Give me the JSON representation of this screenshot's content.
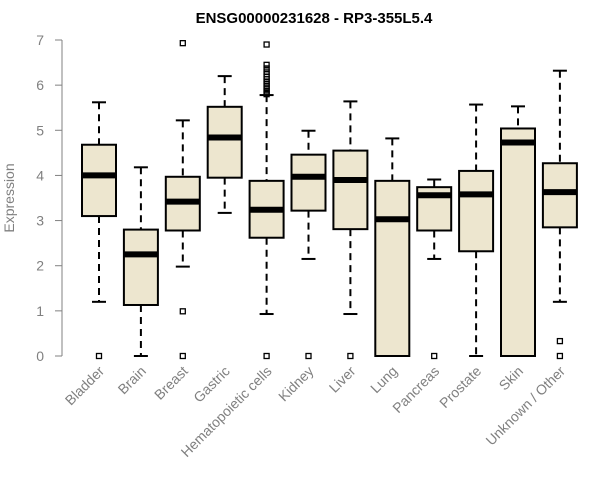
{
  "chart_data": {
    "type": "boxplot",
    "title": "ENSG00000231628 - RP3-355L5.4",
    "xlabel": "",
    "ylabel": "Expression",
    "ylim": [
      0,
      7
    ],
    "yticks": [
      0,
      1,
      2,
      3,
      4,
      5,
      6,
      7
    ],
    "categories": [
      "Bladder",
      "Brain",
      "Breast",
      "Gastric",
      "Hematopoietic cells",
      "Kidney",
      "Liver",
      "Lung",
      "Pancreas",
      "Prostate",
      "Skin",
      "Unknown / Other"
    ],
    "boxes": [
      {
        "name": "Bladder",
        "whisker_low": 1.2,
        "q1": 3.1,
        "median": 4.0,
        "q3": 4.68,
        "whisker_high": 5.62,
        "outliers": [
          0.0
        ]
      },
      {
        "name": "Brain",
        "whisker_low": 0.0,
        "q1": 1.13,
        "median": 2.25,
        "q3": 2.8,
        "whisker_high": 4.18,
        "outliers": []
      },
      {
        "name": "Breast",
        "whisker_low": 1.98,
        "q1": 2.78,
        "median": 3.42,
        "q3": 3.97,
        "whisker_high": 5.22,
        "outliers": [
          0.0,
          0.99,
          6.93
        ]
      },
      {
        "name": "Gastric",
        "whisker_low": 3.17,
        "q1": 3.95,
        "median": 4.84,
        "q3": 5.52,
        "whisker_high": 6.2,
        "outliers": []
      },
      {
        "name": "Hematopoietic cells",
        "whisker_low": 0.93,
        "q1": 2.62,
        "median": 3.24,
        "q3": 3.88,
        "whisker_high": 5.78,
        "outliers": [
          0.0,
          5.8,
          5.84,
          5.88,
          5.93,
          5.98,
          6.03,
          6.08,
          6.13,
          6.18,
          6.24,
          6.3,
          6.37,
          6.45,
          6.9
        ]
      },
      {
        "name": "Kidney",
        "whisker_low": 2.15,
        "q1": 3.22,
        "median": 3.97,
        "q3": 4.46,
        "whisker_high": 4.99,
        "outliers": [
          0.0
        ]
      },
      {
        "name": "Liver",
        "whisker_low": 0.93,
        "q1": 2.81,
        "median": 3.9,
        "q3": 4.55,
        "whisker_high": 5.64,
        "outliers": [
          0.0
        ]
      },
      {
        "name": "Lung",
        "whisker_low": 0.0,
        "q1": 0.0,
        "median": 3.03,
        "q3": 3.88,
        "whisker_high": 4.82,
        "outliers": []
      },
      {
        "name": "Pancreas",
        "whisker_low": 2.15,
        "q1": 2.78,
        "median": 3.56,
        "q3": 3.74,
        "whisker_high": 3.91,
        "outliers": [
          0.0
        ]
      },
      {
        "name": "Prostate",
        "whisker_low": 0.0,
        "q1": 2.32,
        "median": 3.58,
        "q3": 4.1,
        "whisker_high": 5.57,
        "outliers": []
      },
      {
        "name": "Skin",
        "whisker_low": 0.0,
        "q1": 0.0,
        "median": 4.73,
        "q3": 5.04,
        "whisker_high": 5.53,
        "outliers": []
      },
      {
        "name": "Unknown / Other",
        "whisker_low": 1.2,
        "q1": 2.85,
        "median": 3.63,
        "q3": 4.27,
        "whisker_high": 6.32,
        "outliers": [
          0.0,
          0.33
        ]
      }
    ],
    "colors": {
      "box_fill": "#EDE6CF",
      "box_stroke": "#000000",
      "median": "#000000",
      "axis": "#808080",
      "text": "#808080",
      "title": "#000000"
    }
  }
}
